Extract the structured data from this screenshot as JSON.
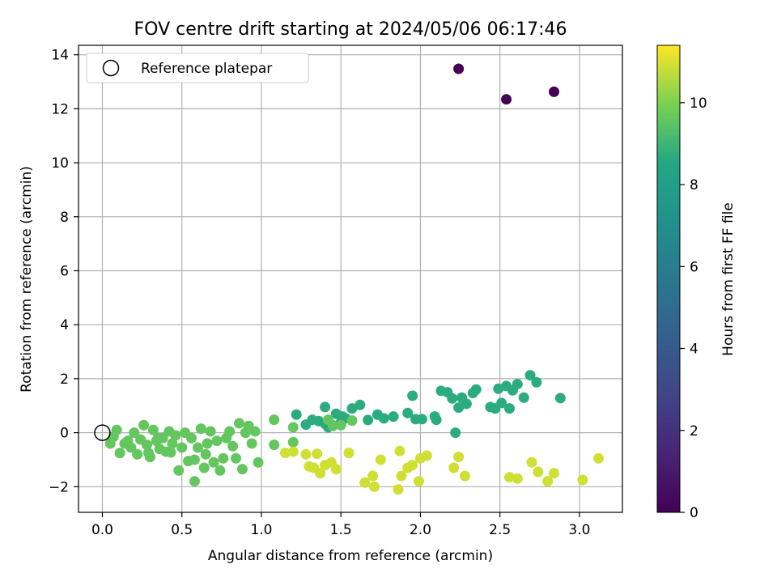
{
  "chart_data": {
    "type": "scatter",
    "title": "FOV centre drift starting at 2024/05/06 06:17:46",
    "xlabel": "Angular distance from reference (arcmin)",
    "ylabel": "Rotation from reference (arcmin)",
    "xlim": [
      -0.15,
      3.27
    ],
    "ylim": [
      -2.95,
      14.35
    ],
    "xticks": [
      "0.0",
      "0.5",
      "1.0",
      "1.5",
      "2.0",
      "2.5",
      "3.0"
    ],
    "yticks": [
      "−2",
      "0",
      "2",
      "4",
      "6",
      "8",
      "10",
      "12",
      "14"
    ],
    "grid": true,
    "legend": {
      "position": "top-left",
      "entries": [
        "Reference platepar"
      ]
    },
    "reference_point": {
      "x": 0.0,
      "y": 0.0
    },
    "colorbar": {
      "label": "Hours from first FF file",
      "colormap": "viridis",
      "range": [
        0,
        11.4
      ],
      "ticks": [
        "0",
        "2",
        "4",
        "6",
        "8",
        "10"
      ]
    },
    "series": [
      {
        "hours": 0.0,
        "points": [
          [
            2.24,
            13.48
          ],
          [
            2.54,
            12.35
          ],
          [
            2.84,
            12.63
          ]
        ]
      },
      {
        "hours": 8.7,
        "points": [
          [
            1.36,
            0.43
          ],
          [
            1.42,
            0.2
          ],
          [
            1.45,
            0.27
          ],
          [
            1.5,
            0.38
          ],
          [
            1.51,
            0.6
          ],
          [
            1.57,
            0.9
          ],
          [
            1.62,
            1.03
          ],
          [
            1.67,
            0.47
          ],
          [
            1.73,
            0.67
          ],
          [
            1.77,
            0.53
          ],
          [
            1.83,
            0.6
          ],
          [
            1.92,
            0.73
          ],
          [
            1.95,
            1.37
          ],
          [
            1.97,
            0.5
          ],
          [
            2.01,
            0.5
          ],
          [
            2.09,
            0.6
          ],
          [
            2.1,
            0.48
          ],
          [
            2.13,
            1.55
          ],
          [
            2.17,
            1.5
          ],
          [
            2.2,
            1.27
          ],
          [
            2.22,
            0.0
          ],
          [
            2.24,
            0.93
          ],
          [
            2.26,
            1.3
          ],
          [
            2.29,
            1.07
          ],
          [
            2.33,
            1.47
          ],
          [
            2.35,
            1.6
          ],
          [
            2.44,
            0.95
          ],
          [
            2.47,
            0.9
          ],
          [
            2.49,
            1.63
          ],
          [
            2.51,
            1.1
          ],
          [
            2.54,
            1.73
          ],
          [
            2.56,
            0.9
          ],
          [
            2.58,
            1.57
          ],
          [
            2.61,
            1.8
          ],
          [
            2.65,
            1.3
          ],
          [
            2.69,
            2.13
          ],
          [
            2.73,
            1.87
          ],
          [
            2.88,
            1.28
          ],
          [
            1.4,
            0.95
          ],
          [
            1.47,
            0.7
          ],
          [
            1.53,
            0.53
          ],
          [
            1.4,
            0.33
          ],
          [
            1.32,
            0.48
          ],
          [
            1.28,
            0.3
          ],
          [
            1.22,
            0.67
          ]
        ]
      },
      {
        "hours": 9.6,
        "points": [
          [
            0.05,
            -0.4
          ],
          [
            0.07,
            -0.15
          ],
          [
            0.09,
            0.1
          ],
          [
            0.11,
            -0.75
          ],
          [
            0.14,
            -0.4
          ],
          [
            0.16,
            -0.3
          ],
          [
            0.18,
            -0.55
          ],
          [
            0.2,
            0.0
          ],
          [
            0.22,
            -0.8
          ],
          [
            0.24,
            -0.25
          ],
          [
            0.26,
            0.28
          ],
          [
            0.28,
            -0.45
          ],
          [
            0.3,
            -0.9
          ],
          [
            0.32,
            0.1
          ],
          [
            0.34,
            -0.3
          ],
          [
            0.36,
            -0.6
          ],
          [
            0.38,
            -0.2
          ],
          [
            0.4,
            -0.7
          ],
          [
            0.42,
            0.05
          ],
          [
            0.44,
            -0.4
          ],
          [
            0.46,
            -0.1
          ],
          [
            0.48,
            -1.4
          ],
          [
            0.5,
            -0.55
          ],
          [
            0.52,
            0.0
          ],
          [
            0.54,
            -1.05
          ],
          [
            0.56,
            -0.2
          ],
          [
            0.58,
            -1.8
          ],
          [
            0.6,
            -0.55
          ],
          [
            0.62,
            0.15
          ],
          [
            0.64,
            -1.3
          ],
          [
            0.66,
            -0.4
          ],
          [
            0.68,
            0.05
          ],
          [
            0.7,
            -1.1
          ],
          [
            0.72,
            -0.3
          ],
          [
            0.74,
            -1.4
          ],
          [
            0.76,
            -0.95
          ],
          [
            0.78,
            -0.2
          ],
          [
            0.8,
            0.05
          ],
          [
            0.82,
            -0.5
          ],
          [
            0.84,
            -0.95
          ],
          [
            0.86,
            0.35
          ],
          [
            0.88,
            -1.35
          ],
          [
            0.9,
            0.0
          ],
          [
            0.92,
            0.25
          ],
          [
            0.94,
            -0.4
          ],
          [
            0.96,
            0.05
          ],
          [
            0.98,
            -1.1
          ],
          [
            1.08,
            -0.45
          ],
          [
            1.08,
            0.48
          ],
          [
            1.2,
            -0.35
          ],
          [
            1.2,
            0.2
          ],
          [
            1.5,
            0.28
          ],
          [
            1.57,
            0.45
          ],
          [
            1.45,
            0.25
          ],
          [
            1.42,
            0.48
          ],
          [
            0.65,
            -0.8
          ],
          [
            0.58,
            -1.0
          ],
          [
            0.43,
            -0.73
          ],
          [
            0.35,
            -0.2
          ],
          [
            0.29,
            -0.75
          ]
        ]
      },
      {
        "hours": 10.9,
        "points": [
          [
            1.15,
            -0.75
          ],
          [
            1.2,
            -0.7
          ],
          [
            1.28,
            -0.8
          ],
          [
            1.3,
            -1.25
          ],
          [
            1.33,
            -1.3
          ],
          [
            1.35,
            -0.78
          ],
          [
            1.37,
            -1.5
          ],
          [
            1.4,
            -1.2
          ],
          [
            1.44,
            -1.1
          ],
          [
            1.47,
            -1.35
          ],
          [
            1.55,
            -0.75
          ],
          [
            1.65,
            -1.85
          ],
          [
            1.7,
            -1.6
          ],
          [
            1.71,
            -2.0
          ],
          [
            1.75,
            -1.0
          ],
          [
            1.86,
            -2.1
          ],
          [
            1.87,
            -0.68
          ],
          [
            1.88,
            -1.6
          ],
          [
            1.92,
            -1.3
          ],
          [
            1.95,
            -1.2
          ],
          [
            1.99,
            -1.8
          ],
          [
            2.0,
            -0.95
          ],
          [
            2.04,
            -0.85
          ],
          [
            2.21,
            -1.3
          ],
          [
            2.24,
            -0.9
          ],
          [
            2.28,
            -1.6
          ],
          [
            2.56,
            -1.65
          ],
          [
            2.61,
            -1.7
          ],
          [
            2.7,
            -1.1
          ],
          [
            2.74,
            -1.45
          ],
          [
            2.8,
            -1.8
          ],
          [
            2.84,
            -1.5
          ],
          [
            3.02,
            -1.75
          ],
          [
            3.12,
            -0.95
          ]
        ]
      }
    ]
  }
}
